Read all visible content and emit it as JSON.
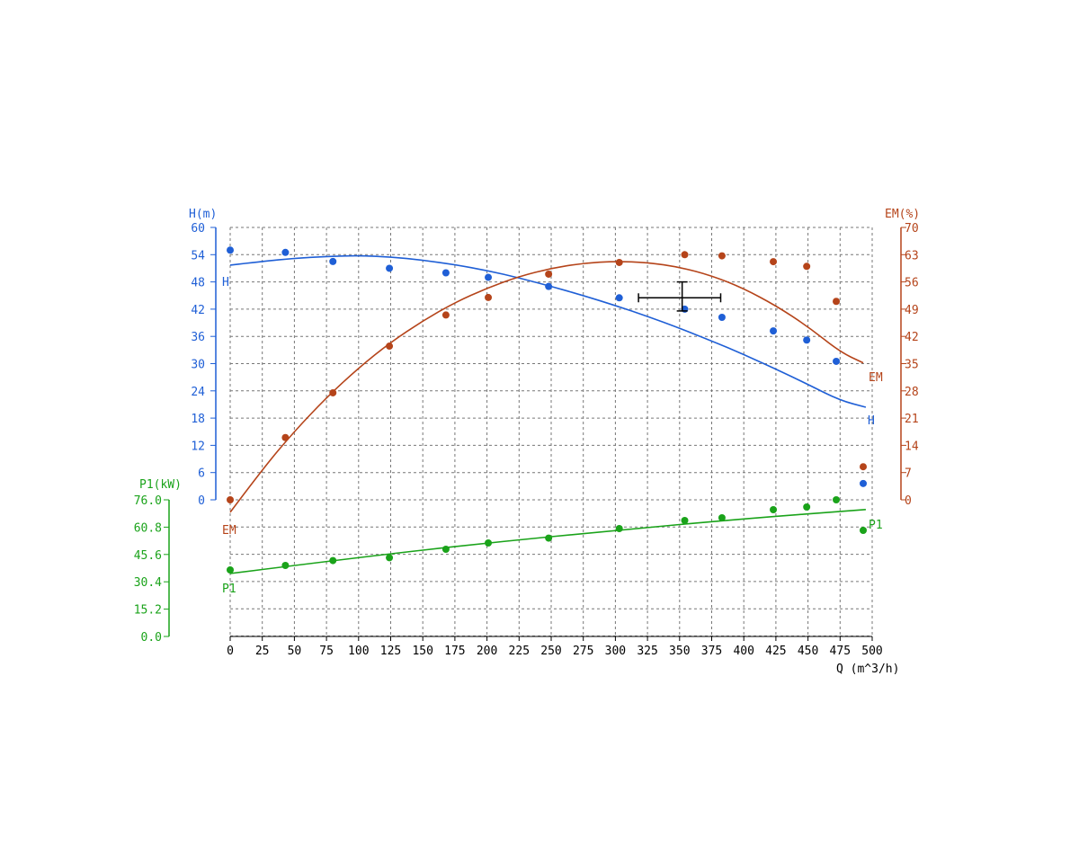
{
  "chart_data": {
    "type": "scatter",
    "x": {
      "label": "Q (m^3/h)",
      "range": [
        0,
        500
      ],
      "ticks": [
        0,
        25,
        50,
        75,
        100,
        125,
        150,
        175,
        200,
        225,
        250,
        275,
        300,
        325,
        350,
        375,
        400,
        425,
        450,
        475,
        500
      ]
    },
    "axes": {
      "H": {
        "label": "H(m)",
        "color": "#1f5fd6",
        "range": [
          0,
          60
        ],
        "ticks": [
          "0",
          "6",
          "12",
          "18",
          "24",
          "30",
          "36",
          "42",
          "48",
          "54",
          "60"
        ]
      },
      "EM": {
        "label": "EM(%)",
        "color": "#b5441a",
        "range": [
          0,
          70
        ],
        "ticks": [
          "0",
          "7",
          "14",
          "21",
          "28",
          "35",
          "42",
          "49",
          "56",
          "63",
          "70"
        ]
      },
      "P1": {
        "label": "P1(kW)",
        "color": "#1aa31a",
        "range": [
          0,
          76
        ],
        "ticks": [
          "0.0",
          "15.2",
          "30.4",
          "45.6",
          "60.8",
          "76.0"
        ]
      }
    },
    "grid": true,
    "series": [
      {
        "name": "H",
        "axis": "H",
        "color": "#1f5fd6",
        "points": [
          [
            0,
            55.0
          ],
          [
            43,
            54.5
          ],
          [
            80,
            52.5
          ],
          [
            124,
            51.0
          ],
          [
            168,
            50.0
          ],
          [
            201,
            49.0
          ],
          [
            248,
            47.0
          ],
          [
            303,
            44.5
          ],
          [
            354,
            42.0
          ],
          [
            383,
            40.2
          ],
          [
            423,
            37.2
          ],
          [
            449,
            35.2
          ],
          [
            472,
            30.5
          ],
          [
            493,
            3.6
          ]
        ],
        "curve": [
          [
            0,
            51.7
          ],
          [
            25,
            52.5
          ],
          [
            50,
            53.2
          ],
          [
            75,
            53.6
          ],
          [
            100,
            53.8
          ],
          [
            125,
            53.5
          ],
          [
            150,
            52.8
          ],
          [
            175,
            51.8
          ],
          [
            200,
            50.5
          ],
          [
            225,
            48.9
          ],
          [
            250,
            47.0
          ],
          [
            275,
            45.0
          ],
          [
            300,
            42.8
          ],
          [
            325,
            40.4
          ],
          [
            350,
            37.8
          ],
          [
            375,
            35.0
          ],
          [
            400,
            32.0
          ],
          [
            425,
            28.8
          ],
          [
            450,
            25.4
          ],
          [
            475,
            21.9
          ],
          [
            495,
            20.4
          ]
        ],
        "end_label": "H"
      },
      {
        "name": "EM",
        "axis": "EM",
        "color": "#b5441a",
        "points": [
          [
            0,
            0
          ],
          [
            43,
            16.0
          ],
          [
            80,
            27.5
          ],
          [
            124,
            39.5
          ],
          [
            168,
            47.5
          ],
          [
            201,
            52.0
          ],
          [
            248,
            58.0
          ],
          [
            303,
            61.0
          ],
          [
            354,
            63.0
          ],
          [
            383,
            62.7
          ],
          [
            423,
            61.2
          ],
          [
            449,
            60.0
          ],
          [
            472,
            51.0
          ],
          [
            493,
            8.5
          ]
        ],
        "curve": [
          [
            0,
            -3.2
          ],
          [
            25,
            7.8
          ],
          [
            50,
            17.6
          ],
          [
            75,
            26.3
          ],
          [
            100,
            33.9
          ],
          [
            125,
            40.5
          ],
          [
            150,
            46.0
          ],
          [
            175,
            50.7
          ],
          [
            200,
            54.4
          ],
          [
            225,
            57.4
          ],
          [
            250,
            59.5
          ],
          [
            275,
            60.8
          ],
          [
            300,
            61.3
          ],
          [
            325,
            61.0
          ],
          [
            350,
            59.8
          ],
          [
            375,
            57.6
          ],
          [
            400,
            54.3
          ],
          [
            425,
            49.9
          ],
          [
            450,
            44.5
          ],
          [
            475,
            38.0
          ],
          [
            493,
            35.2
          ]
        ],
        "end_label": "EM"
      },
      {
        "name": "P1",
        "axis": "P1",
        "color": "#1aa31a",
        "points": [
          [
            0,
            37.0
          ],
          [
            43,
            39.5
          ],
          [
            80,
            42.2
          ],
          [
            124,
            43.8
          ],
          [
            168,
            48.5
          ],
          [
            201,
            52.0
          ],
          [
            248,
            54.7
          ],
          [
            303,
            60.0
          ],
          [
            354,
            64.5
          ],
          [
            383,
            66.0
          ],
          [
            423,
            70.5
          ],
          [
            449,
            72.0
          ],
          [
            472,
            76.0
          ],
          [
            493,
            59.0
          ]
        ],
        "curve": [
          [
            0,
            35.0
          ],
          [
            100,
            44.0
          ],
          [
            200,
            52.0
          ],
          [
            300,
            59.0
          ],
          [
            400,
            65.5
          ],
          [
            495,
            70.6
          ]
        ],
        "end_label": "P1"
      }
    ],
    "duty_point": {
      "q": 352,
      "h": 44.5,
      "q_range": [
        318,
        382
      ],
      "h_range": [
        41.6,
        48.0
      ]
    }
  }
}
